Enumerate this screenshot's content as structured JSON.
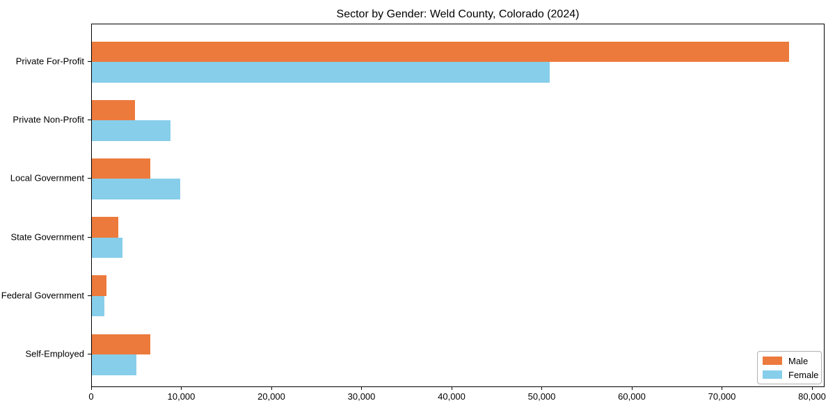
{
  "chart_data": {
    "type": "bar",
    "orientation": "horizontal",
    "title": "Sector by Gender: Weld County, Colorado (2024)",
    "categories": [
      "Private For-Profit",
      "Private Non-Profit",
      "Local Government",
      "State Government",
      "Federal Government",
      "Self-Employed"
    ],
    "series": [
      {
        "name": "Male",
        "color": "#ec7a3c",
        "values": [
          77400,
          4800,
          6500,
          2900,
          1600,
          6500
        ]
      },
      {
        "name": "Female",
        "color": "#87ceeb",
        "values": [
          50800,
          8700,
          9800,
          3400,
          1400,
          4900
        ]
      }
    ],
    "xlabel": "",
    "ylabel": "",
    "xlim": [
      0,
      81400
    ],
    "xticks": [
      0,
      10000,
      20000,
      30000,
      40000,
      50000,
      60000,
      70000,
      80000
    ],
    "xtick_labels": [
      "0",
      "10,000",
      "20,000",
      "30,000",
      "40,000",
      "50,000",
      "60,000",
      "70,000",
      "80,000"
    ],
    "legend": {
      "position": "lower right",
      "entries": [
        "Male",
        "Female"
      ]
    },
    "grid": false,
    "background_color": "#ffffff",
    "axis_color": "#000000"
  }
}
